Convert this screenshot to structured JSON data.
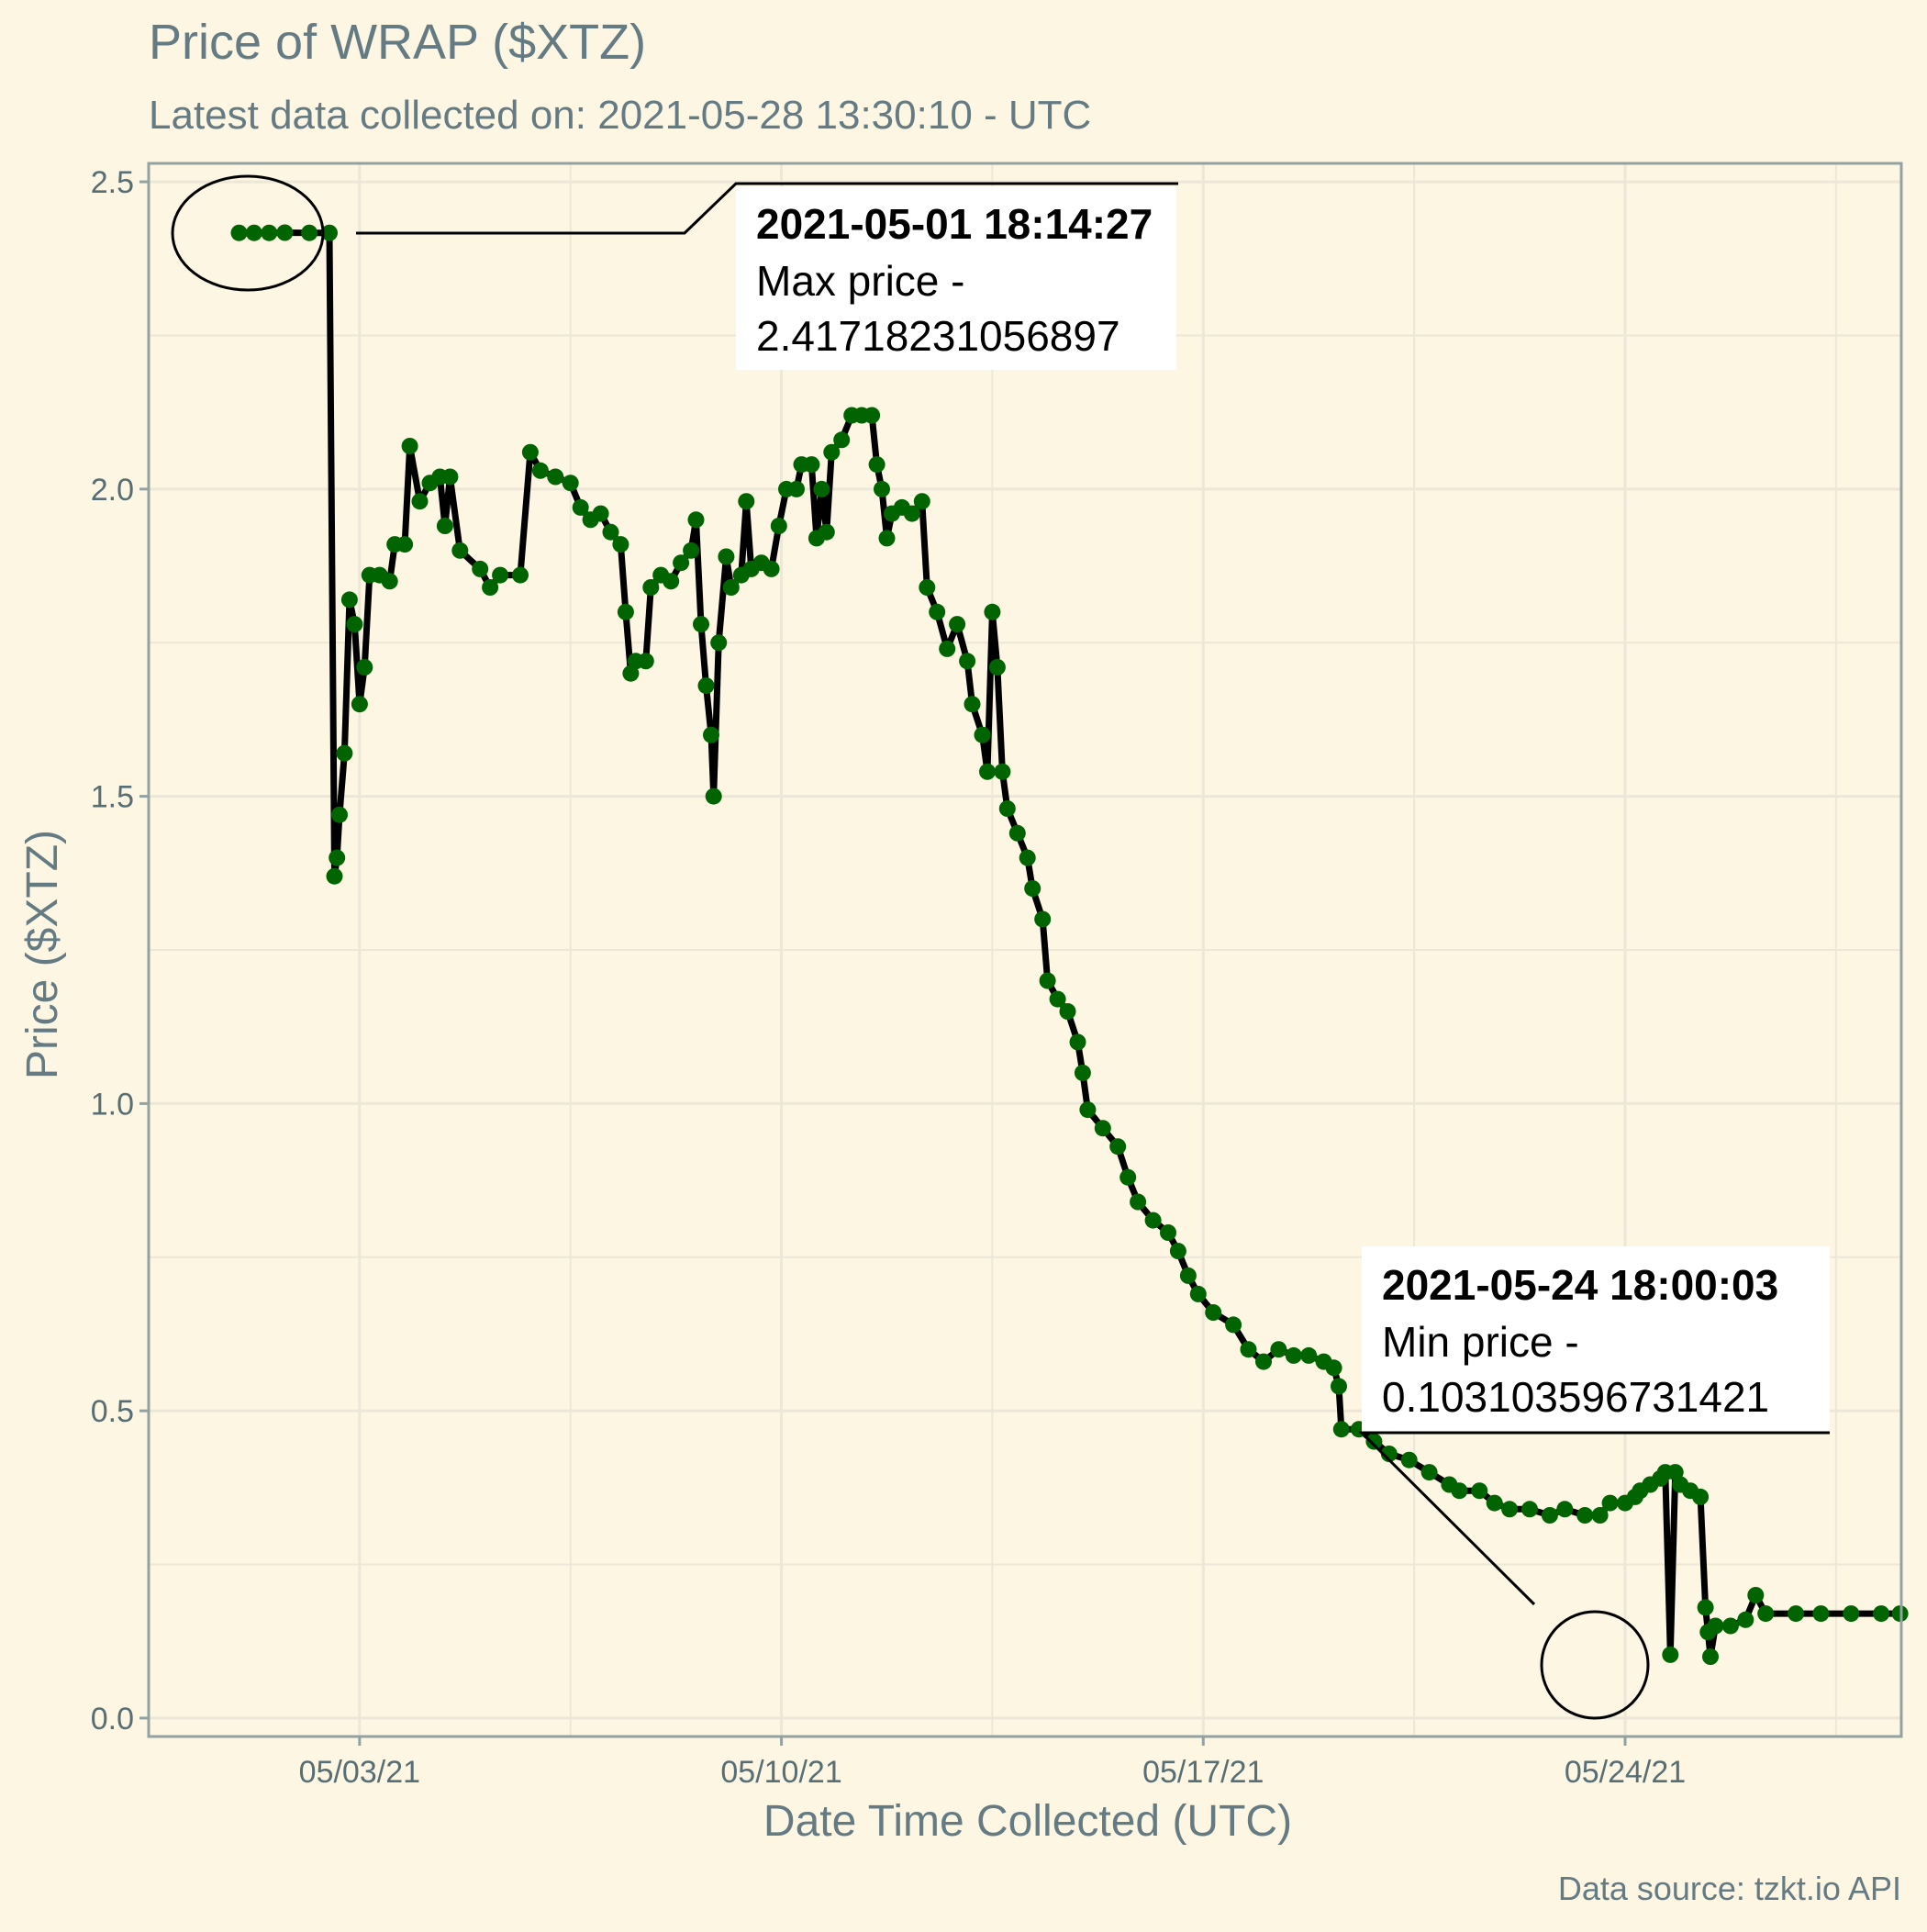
{
  "chart_data": {
    "type": "line",
    "title": "Price of WRAP ($XTZ)",
    "subtitle": "Latest data collected on: 2021-05-28 13:30:10  - UTC",
    "xlabel": "Date Time Collected (UTC)",
    "ylabel": "Price ($XTZ)",
    "caption": "Data source: tzkt.io API",
    "x_axis": {
      "type": "date",
      "range": [
        "2021-04-29T12:00:00",
        "2021-05-28T14:00:00"
      ],
      "ticks": [
        {
          "value": "2021-05-03",
          "label": "05/03/21"
        },
        {
          "value": "2021-05-10",
          "label": "05/10/21"
        },
        {
          "value": "2021-05-17",
          "label": "05/17/21"
        },
        {
          "value": "2021-05-24",
          "label": "05/24/21"
        }
      ]
    },
    "y_axis": {
      "range": [
        -0.03,
        2.53
      ],
      "ticks": [
        {
          "value": 0,
          "label": "0.0"
        },
        {
          "value": 0.5,
          "label": "0.5"
        },
        {
          "value": 1,
          "label": "1.0"
        },
        {
          "value": 1.5,
          "label": "1.5"
        },
        {
          "value": 2,
          "label": "2.0"
        },
        {
          "value": 2.5,
          "label": "2.5"
        }
      ]
    },
    "grid": true,
    "legend": "none",
    "colors": {
      "background": "#fdf6e3",
      "panel_border": "#93a1a1",
      "grid": "#ece7d6",
      "text": "#657b83",
      "axis_text": "#586e75",
      "line": "#000000",
      "points": "#006400"
    },
    "series": [
      {
        "points": [
          [
            "2021-05-01T00:00:00",
            2.417
          ],
          [
            "2021-05-01T06:00:00",
            2.417
          ],
          [
            "2021-05-01T12:00:00",
            2.417
          ],
          [
            "2021-05-01T18:14:27",
            2.4172
          ],
          [
            "2021-05-02T04:00:00",
            2.417
          ],
          [
            "2021-05-02T12:00:00",
            2.417
          ],
          [
            "2021-05-02T14:00:00",
            1.37
          ],
          [
            "2021-05-02T15:00:00",
            1.4
          ],
          [
            "2021-05-02T16:00:00",
            1.47
          ],
          [
            "2021-05-02T18:00:00",
            1.57
          ],
          [
            "2021-05-02T20:00:00",
            1.82
          ],
          [
            "2021-05-02T22:00:00",
            1.78
          ],
          [
            "2021-05-03T00:00:00",
            1.65
          ],
          [
            "2021-05-03T02:00:00",
            1.71
          ],
          [
            "2021-05-03T04:00:00",
            1.86
          ],
          [
            "2021-05-03T08:00:00",
            1.86
          ],
          [
            "2021-05-03T12:00:00",
            1.85
          ],
          [
            "2021-05-03T14:00:00",
            1.91
          ],
          [
            "2021-05-03T18:00:00",
            1.91
          ],
          [
            "2021-05-03T20:00:00",
            2.07
          ],
          [
            "2021-05-04T00:00:00",
            1.98
          ],
          [
            "2021-05-04T04:00:00",
            2.01
          ],
          [
            "2021-05-04T08:00:00",
            2.02
          ],
          [
            "2021-05-04T10:00:00",
            1.94
          ],
          [
            "2021-05-04T12:00:00",
            2.02
          ],
          [
            "2021-05-04T16:00:00",
            1.9
          ],
          [
            "2021-05-05T00:00:00",
            1.87
          ],
          [
            "2021-05-05T04:00:00",
            1.84
          ],
          [
            "2021-05-05T08:00:00",
            1.86
          ],
          [
            "2021-05-05T16:00:00",
            1.86
          ],
          [
            "2021-05-05T20:00:00",
            2.06
          ],
          [
            "2021-05-06T00:00:00",
            2.03
          ],
          [
            "2021-05-06T06:00:00",
            2.02
          ],
          [
            "2021-05-06T12:00:00",
            2.01
          ],
          [
            "2021-05-06T16:00:00",
            1.97
          ],
          [
            "2021-05-06T20:00:00",
            1.95
          ],
          [
            "2021-05-07T00:00:00",
            1.96
          ],
          [
            "2021-05-07T04:00:00",
            1.93
          ],
          [
            "2021-05-07T08:00:00",
            1.91
          ],
          [
            "2021-05-07T10:00:00",
            1.8
          ],
          [
            "2021-05-07T12:00:00",
            1.7
          ],
          [
            "2021-05-07T14:00:00",
            1.72
          ],
          [
            "2021-05-07T18:00:00",
            1.72
          ],
          [
            "2021-05-07T20:00:00",
            1.84
          ],
          [
            "2021-05-08T00:00:00",
            1.86
          ],
          [
            "2021-05-08T04:00:00",
            1.85
          ],
          [
            "2021-05-08T08:00:00",
            1.88
          ],
          [
            "2021-05-08T12:00:00",
            1.9
          ],
          [
            "2021-05-08T14:00:00",
            1.95
          ],
          [
            "2021-05-08T16:00:00",
            1.78
          ],
          [
            "2021-05-08T18:00:00",
            1.68
          ],
          [
            "2021-05-08T20:00:00",
            1.6
          ],
          [
            "2021-05-08T21:00:00",
            1.5
          ],
          [
            "2021-05-08T23:00:00",
            1.75
          ],
          [
            "2021-05-09T02:00:00",
            1.89
          ],
          [
            "2021-05-09T04:00:00",
            1.84
          ],
          [
            "2021-05-09T08:00:00",
            1.86
          ],
          [
            "2021-05-09T10:00:00",
            1.98
          ],
          [
            "2021-05-09T12:00:00",
            1.87
          ],
          [
            "2021-05-09T16:00:00",
            1.88
          ],
          [
            "2021-05-09T20:00:00",
            1.87
          ],
          [
            "2021-05-09T23:00:00",
            1.94
          ],
          [
            "2021-05-10T02:00:00",
            2.0
          ],
          [
            "2021-05-10T06:00:00",
            2.0
          ],
          [
            "2021-05-10T08:00:00",
            2.04
          ],
          [
            "2021-05-10T12:00:00",
            2.04
          ],
          [
            "2021-05-10T14:00:00",
            1.92
          ],
          [
            "2021-05-10T16:00:00",
            2.0
          ],
          [
            "2021-05-10T18:00:00",
            1.93
          ],
          [
            "2021-05-10T20:00:00",
            2.06
          ],
          [
            "2021-05-11T00:00:00",
            2.08
          ],
          [
            "2021-05-11T04:00:00",
            2.12
          ],
          [
            "2021-05-11T08:00:00",
            2.12
          ],
          [
            "2021-05-11T12:00:00",
            2.12
          ],
          [
            "2021-05-11T14:00:00",
            2.04
          ],
          [
            "2021-05-11T16:00:00",
            2.0
          ],
          [
            "2021-05-11T18:00:00",
            1.92
          ],
          [
            "2021-05-11T20:00:00",
            1.96
          ],
          [
            "2021-05-12T00:00:00",
            1.97
          ],
          [
            "2021-05-12T04:00:00",
            1.96
          ],
          [
            "2021-05-12T08:00:00",
            1.98
          ],
          [
            "2021-05-12T10:00:00",
            1.84
          ],
          [
            "2021-05-12T14:00:00",
            1.8
          ],
          [
            "2021-05-12T18:00:00",
            1.74
          ],
          [
            "2021-05-12T22:00:00",
            1.78
          ],
          [
            "2021-05-13T02:00:00",
            1.72
          ],
          [
            "2021-05-13T04:00:00",
            1.65
          ],
          [
            "2021-05-13T08:00:00",
            1.6
          ],
          [
            "2021-05-13T10:00:00",
            1.54
          ],
          [
            "2021-05-13T12:00:00",
            1.8
          ],
          [
            "2021-05-13T14:00:00",
            1.71
          ],
          [
            "2021-05-13T16:00:00",
            1.54
          ],
          [
            "2021-05-13T18:00:00",
            1.48
          ],
          [
            "2021-05-13T22:00:00",
            1.44
          ],
          [
            "2021-05-14T02:00:00",
            1.4
          ],
          [
            "2021-05-14T04:00:00",
            1.35
          ],
          [
            "2021-05-14T08:00:00",
            1.3
          ],
          [
            "2021-05-14T10:00:00",
            1.2
          ],
          [
            "2021-05-14T14:00:00",
            1.17
          ],
          [
            "2021-05-14T18:00:00",
            1.15
          ],
          [
            "2021-05-14T22:00:00",
            1.1
          ],
          [
            "2021-05-15T00:00:00",
            1.05
          ],
          [
            "2021-05-15T02:00:00",
            0.99
          ],
          [
            "2021-05-15T08:00:00",
            0.96
          ],
          [
            "2021-05-15T14:00:00",
            0.93
          ],
          [
            "2021-05-15T18:00:00",
            0.88
          ],
          [
            "2021-05-15T22:00:00",
            0.84
          ],
          [
            "2021-05-16T04:00:00",
            0.81
          ],
          [
            "2021-05-16T10:00:00",
            0.79
          ],
          [
            "2021-05-16T14:00:00",
            0.76
          ],
          [
            "2021-05-16T18:00:00",
            0.72
          ],
          [
            "2021-05-16T22:00:00",
            0.69
          ],
          [
            "2021-05-17T04:00:00",
            0.66
          ],
          [
            "2021-05-17T12:00:00",
            0.64
          ],
          [
            "2021-05-17T18:00:00",
            0.6
          ],
          [
            "2021-05-18T00:00:00",
            0.58
          ],
          [
            "2021-05-18T06:00:00",
            0.6
          ],
          [
            "2021-05-18T12:00:00",
            0.59
          ],
          [
            "2021-05-18T18:00:00",
            0.59
          ],
          [
            "2021-05-19T00:00:00",
            0.58
          ],
          [
            "2021-05-19T04:00:00",
            0.57
          ],
          [
            "2021-05-19T06:00:00",
            0.54
          ],
          [
            "2021-05-19T07:00:00",
            0.47
          ],
          [
            "2021-05-19T14:00:00",
            0.47
          ],
          [
            "2021-05-19T20:00:00",
            0.45
          ],
          [
            "2021-05-20T02:00:00",
            0.43
          ],
          [
            "2021-05-20T10:00:00",
            0.42
          ],
          [
            "2021-05-20T18:00:00",
            0.4
          ],
          [
            "2021-05-21T02:00:00",
            0.38
          ],
          [
            "2021-05-21T06:00:00",
            0.37
          ],
          [
            "2021-05-21T14:00:00",
            0.37
          ],
          [
            "2021-05-21T20:00:00",
            0.35
          ],
          [
            "2021-05-22T02:00:00",
            0.34
          ],
          [
            "2021-05-22T10:00:00",
            0.34
          ],
          [
            "2021-05-22T18:00:00",
            0.33
          ],
          [
            "2021-05-23T00:00:00",
            0.34
          ],
          [
            "2021-05-23T08:00:00",
            0.33
          ],
          [
            "2021-05-23T14:00:00",
            0.33
          ],
          [
            "2021-05-23T18:00:00",
            0.35
          ],
          [
            "2021-05-24T00:00:00",
            0.35
          ],
          [
            "2021-05-24T04:00:00",
            0.36
          ],
          [
            "2021-05-24T06:00:00",
            0.37
          ],
          [
            "2021-05-24T10:00:00",
            0.38
          ],
          [
            "2021-05-24T14:00:00",
            0.39
          ],
          [
            "2021-05-24T16:00:00",
            0.4
          ],
          [
            "2021-05-24T18:00:03",
            0.103104
          ],
          [
            "2021-05-24T20:00:00",
            0.4
          ],
          [
            "2021-05-24T22:00:00",
            0.38
          ],
          [
            "2021-05-25T02:00:00",
            0.37
          ],
          [
            "2021-05-25T06:00:00",
            0.36
          ],
          [
            "2021-05-25T08:00:00",
            0.18
          ],
          [
            "2021-05-25T09:00:00",
            0.14
          ],
          [
            "2021-05-25T10:00:00",
            0.1
          ],
          [
            "2021-05-25T12:00:00",
            0.15
          ],
          [
            "2021-05-25T18:00:00",
            0.15
          ],
          [
            "2021-05-26T00:00:00",
            0.16
          ],
          [
            "2021-05-26T04:00:00",
            0.2
          ],
          [
            "2021-05-26T08:00:00",
            0.17
          ],
          [
            "2021-05-26T20:00:00",
            0.17
          ],
          [
            "2021-05-27T06:00:00",
            0.17
          ],
          [
            "2021-05-27T18:00:00",
            0.17
          ],
          [
            "2021-05-28T06:00:00",
            0.17
          ],
          [
            "2021-05-28T13:30:10",
            0.17
          ]
        ]
      }
    ],
    "annotations": [
      {
        "kind": "max",
        "timestamp": "2021-05-01 18:14:27",
        "label": "Max price -",
        "value": "2.41718231056897"
      },
      {
        "kind": "min",
        "timestamp": "2021-05-24 18:00:03",
        "label": "Min price -",
        "value": "0.103103596731421"
      }
    ]
  }
}
